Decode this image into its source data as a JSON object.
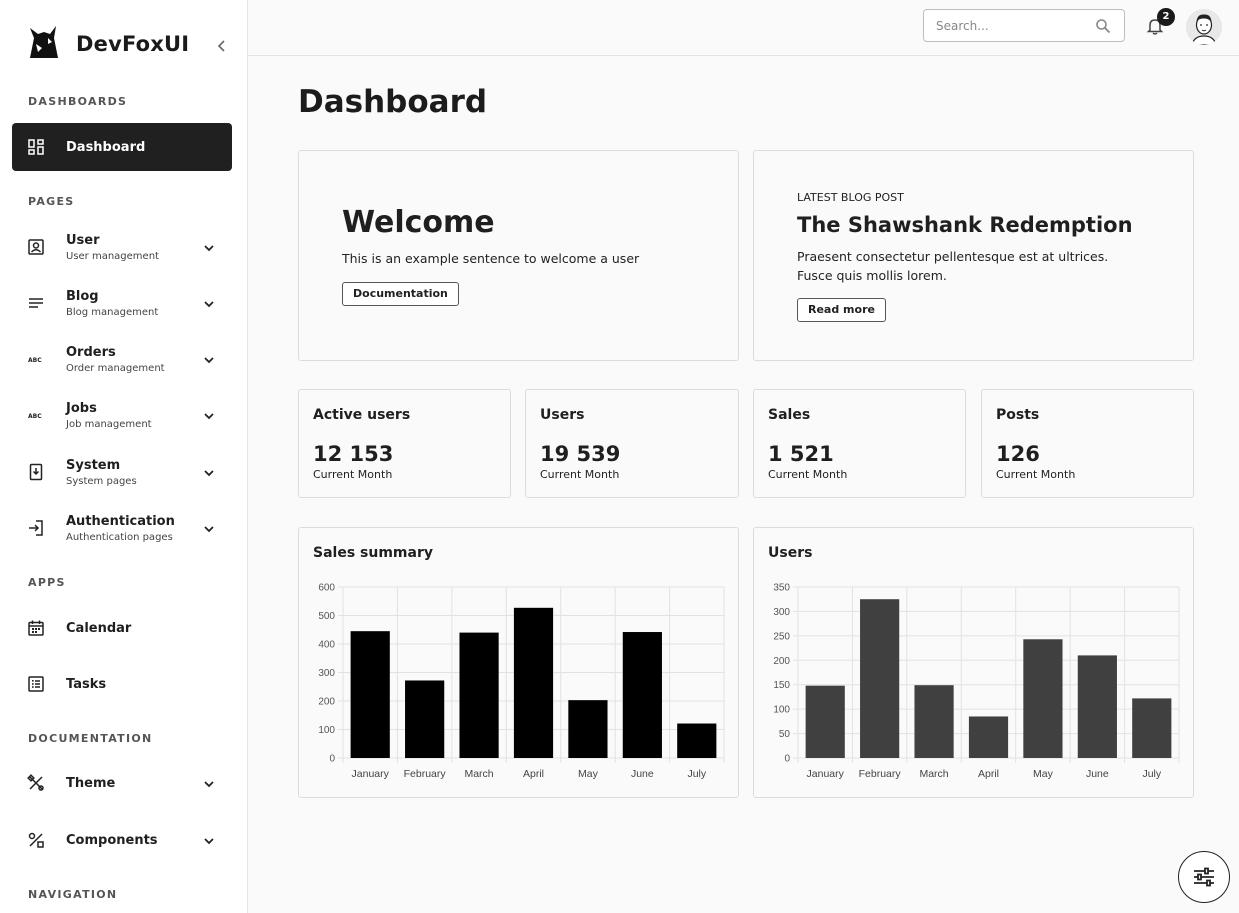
{
  "app": {
    "name": "DevFoxUI"
  },
  "sidebar": {
    "sections": [
      "DASHBOARDS",
      "PAGES",
      "APPS",
      "DOCUMENTATION",
      "NAVIGATION"
    ],
    "items": [
      {
        "label": "Dashboard",
        "icon": "dashboard-icon",
        "active": true
      },
      {
        "label": "User",
        "sub": "User management",
        "icon": "user-icon"
      },
      {
        "label": "Blog",
        "sub": "Blog management",
        "icon": "blog-icon"
      },
      {
        "label": "Orders",
        "sub": "Order management",
        "icon": "abc-icon"
      },
      {
        "label": "Jobs",
        "sub": "Job management",
        "icon": "abc-icon"
      },
      {
        "label": "System",
        "sub": "System pages",
        "icon": "system-icon"
      },
      {
        "label": "Authentication",
        "sub": "Authentication pages",
        "icon": "login-icon"
      },
      {
        "label": "Calendar",
        "icon": "calendar-icon"
      },
      {
        "label": "Tasks",
        "icon": "tasks-icon"
      },
      {
        "label": "Theme",
        "icon": "theme-icon"
      },
      {
        "label": "Components",
        "icon": "components-icon"
      }
    ]
  },
  "topbar": {
    "search_placeholder": "Search...",
    "notifications": "2"
  },
  "main": {
    "title": "Dashboard",
    "welcome": {
      "title": "Welcome",
      "text": "This is an example sentence to welcome a user",
      "button": "Documentation"
    },
    "blog": {
      "kicker": "LATEST BLOG POST",
      "title": "The Shawshank Redemption",
      "text": "Praesent consectetur pellentesque est at ultrices. Fusce quis mollis lorem.",
      "button": "Read more"
    },
    "stats": [
      {
        "label": "Active users",
        "value": "12 153",
        "sub": "Current Month"
      },
      {
        "label": "Users",
        "value": "19 539",
        "sub": "Current Month"
      },
      {
        "label": "Sales",
        "value": "1 521",
        "sub": "Current Month"
      },
      {
        "label": "Posts",
        "value": "126",
        "sub": "Current Month"
      }
    ]
  },
  "colors": {
    "accent": "#202020",
    "bar_sales": "#000000",
    "bar_users": "#404040"
  },
  "chart_data": [
    {
      "type": "bar",
      "title": "Sales summary",
      "categories": [
        "January",
        "February",
        "March",
        "April",
        "May",
        "June",
        "July"
      ],
      "values": [
        445,
        272,
        440,
        527,
        203,
        442,
        121
      ],
      "ylim": [
        0,
        600
      ],
      "yticks": [
        0,
        100,
        200,
        300,
        400,
        500,
        600
      ],
      "grid": true,
      "color": "#000000"
    },
    {
      "type": "bar",
      "title": "Users",
      "categories": [
        "January",
        "February",
        "March",
        "April",
        "May",
        "June",
        "July"
      ],
      "values": [
        148,
        325,
        149,
        85,
        243,
        210,
        122
      ],
      "ylim": [
        0,
        350
      ],
      "yticks": [
        0,
        50,
        100,
        150,
        200,
        250,
        300,
        350
      ],
      "grid": true,
      "color": "#404040"
    }
  ]
}
